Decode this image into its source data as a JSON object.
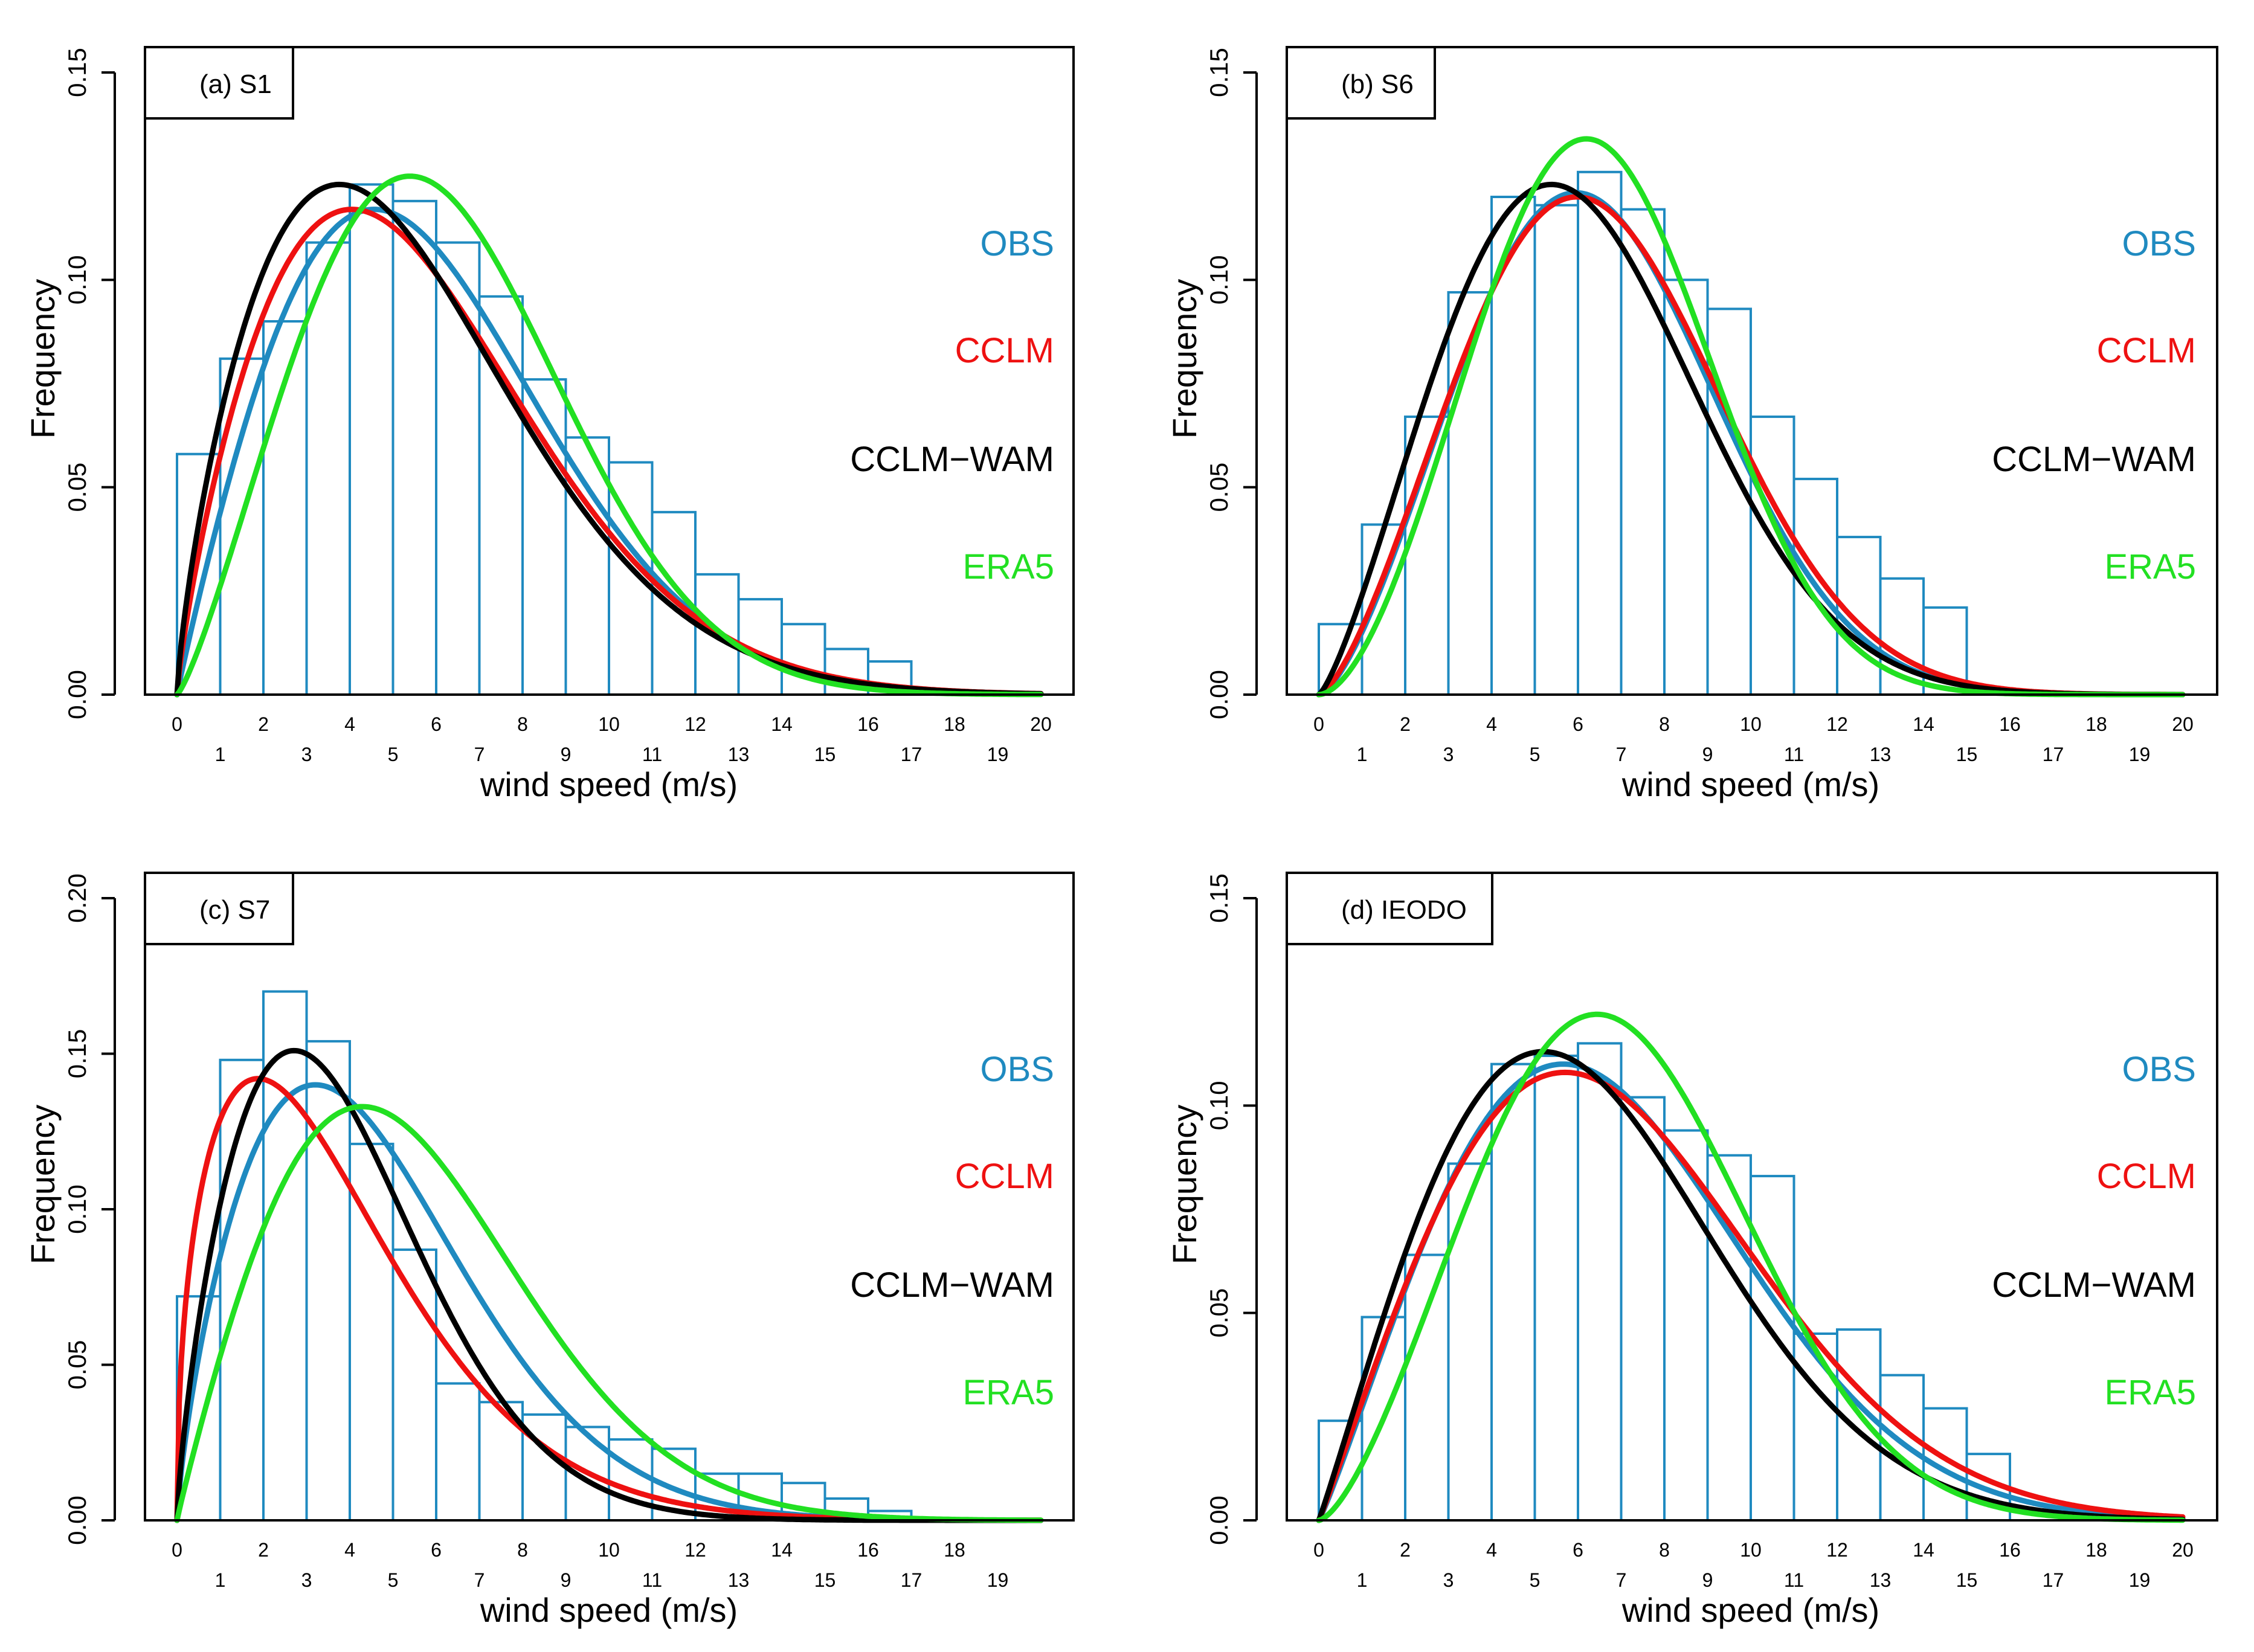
{
  "figure": {
    "xlabel": "wind speed (m/s)",
    "ylabel": "Frequency"
  },
  "legend": {
    "entries": [
      {
        "label": "OBS",
        "color": "#1f8ac0"
      },
      {
        "label": "CCLM",
        "color": "#ee1111"
      },
      {
        "label": "CCLM−WAM",
        "color": "#000000"
      },
      {
        "label": "ERA5",
        "color": "#22e022"
      }
    ]
  },
  "chart_data": [
    {
      "type": "bar",
      "panel_label": "(a) S1",
      "xlim": [
        0,
        20
      ],
      "ylim": [
        0,
        0.15
      ],
      "yticks": [
        0.0,
        0.05,
        0.1,
        0.15
      ],
      "xticks": [
        0,
        1,
        2,
        3,
        4,
        5,
        6,
        7,
        8,
        9,
        10,
        11,
        12,
        13,
        14,
        15,
        16,
        17,
        18,
        19,
        20
      ],
      "bins": {
        "start": 0,
        "width": 1,
        "values": [
          0.058,
          0.081,
          0.09,
          0.109,
          0.123,
          0.119,
          0.109,
          0.096,
          0.076,
          0.062,
          0.056,
          0.044,
          0.029,
          0.023,
          0.017,
          0.011,
          0.008
        ]
      },
      "curves": [
        {
          "name": "OBS",
          "dist": "weibull",
          "k": 1.95,
          "scale": 6.6,
          "peak": 0.117
        },
        {
          "name": "CCLM",
          "dist": "weibull",
          "k": 1.8,
          "scale": 6.35,
          "peak": 0.117
        },
        {
          "name": "CCLM−WAM",
          "dist": "weibull",
          "k": 1.75,
          "scale": 6.1,
          "peak": 0.123
        },
        {
          "name": "ERA5",
          "dist": "weibull",
          "k": 2.25,
          "scale": 7.0,
          "peak": 0.125
        }
      ]
    },
    {
      "type": "bar",
      "panel_label": "(b) S6",
      "xlim": [
        0,
        20
      ],
      "ylim": [
        0,
        0.15
      ],
      "yticks": [
        0.0,
        0.05,
        0.1,
        0.15
      ],
      "xticks": [
        0,
        1,
        2,
        3,
        4,
        5,
        6,
        7,
        8,
        9,
        10,
        11,
        12,
        13,
        14,
        15,
        16,
        17,
        18,
        19,
        20
      ],
      "bins": {
        "start": 0,
        "width": 1,
        "values": [
          0.017,
          0.041,
          0.067,
          0.097,
          0.12,
          0.118,
          0.126,
          0.117,
          0.1,
          0.093,
          0.067,
          0.052,
          0.038,
          0.028,
          0.021
        ]
      },
      "curves": [
        {
          "name": "OBS",
          "dist": "weibull",
          "k": 2.5,
          "scale": 7.3,
          "peak": 0.121
        },
        {
          "name": "CCLM",
          "dist": "weibull",
          "k": 2.45,
          "scale": 7.4,
          "peak": 0.12
        },
        {
          "name": "CCLM−WAM",
          "dist": "weibull",
          "k": 2.3,
          "scale": 6.9,
          "peak": 0.123
        },
        {
          "name": "ERA5",
          "dist": "weibull",
          "k": 2.75,
          "scale": 7.3,
          "peak": 0.134
        }
      ]
    },
    {
      "type": "bar",
      "panel_label": "(c) S7",
      "xlim": [
        0,
        20
      ],
      "ylim": [
        0,
        0.2
      ],
      "yticks": [
        0.0,
        0.05,
        0.1,
        0.15,
        0.2
      ],
      "xticks": [
        0,
        1,
        2,
        3,
        4,
        5,
        6,
        7,
        8,
        9,
        10,
        11,
        12,
        13,
        14,
        15,
        16,
        17,
        18,
        19
      ],
      "bins": {
        "start": 0,
        "width": 1,
        "values": [
          0.072,
          0.148,
          0.17,
          0.154,
          0.121,
          0.087,
          0.044,
          0.038,
          0.034,
          0.03,
          0.026,
          0.023,
          0.015,
          0.015,
          0.012,
          0.007,
          0.003
        ]
      },
      "curves": [
        {
          "name": "OBS",
          "dist": "weibull",
          "k": 1.75,
          "scale": 5.2,
          "peak": 0.14
        },
        {
          "name": "CCLM",
          "dist": "weibull",
          "k": 1.45,
          "scale": 4.2,
          "peak": 0.142
        },
        {
          "name": "CCLM−WAM",
          "dist": "weibull",
          "k": 1.75,
          "scale": 4.4,
          "peak": 0.151
        },
        {
          "name": "ERA5",
          "dist": "weibull",
          "k": 1.95,
          "scale": 6.2,
          "peak": 0.133
        }
      ]
    },
    {
      "type": "bar",
      "panel_label": "(d) IEODO",
      "xlim": [
        0,
        20
      ],
      "ylim": [
        0,
        0.15
      ],
      "yticks": [
        0.0,
        0.05,
        0.1,
        0.15
      ],
      "xticks": [
        0,
        1,
        2,
        3,
        4,
        5,
        6,
        7,
        8,
        9,
        10,
        11,
        12,
        13,
        14,
        15,
        16,
        17,
        18,
        19,
        20
      ],
      "bins": {
        "start": 0,
        "width": 1,
        "values": [
          0.024,
          0.049,
          0.064,
          0.086,
          0.11,
          0.112,
          0.115,
          0.102,
          0.094,
          0.088,
          0.083,
          0.045,
          0.046,
          0.035,
          0.027,
          0.016
        ]
      },
      "curves": [
        {
          "name": "OBS",
          "dist": "weibull",
          "k": 2.1,
          "scale": 7.7,
          "peak": 0.11
        },
        {
          "name": "CCLM",
          "dist": "weibull",
          "k": 2.05,
          "scale": 7.9,
          "peak": 0.108
        },
        {
          "name": "CCLM−WAM",
          "dist": "weibull",
          "k": 2.05,
          "scale": 7.2,
          "peak": 0.113
        },
        {
          "name": "ERA5",
          "dist": "weibull",
          "k": 2.5,
          "scale": 7.9,
          "peak": 0.122
        }
      ]
    }
  ]
}
